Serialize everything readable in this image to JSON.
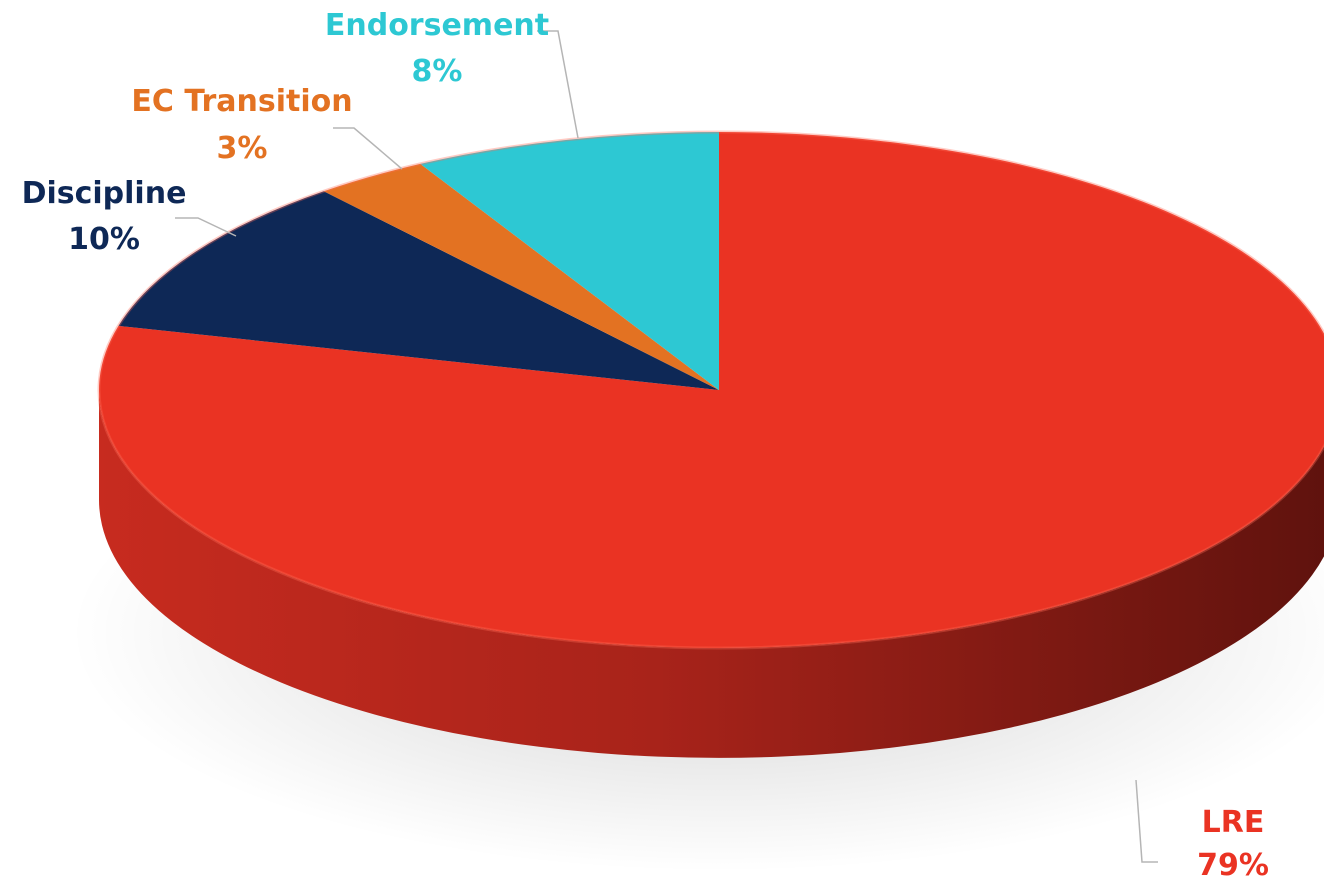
{
  "chart_data": {
    "type": "pie",
    "style": "3d",
    "slices": [
      {
        "label": "LRE",
        "value": 79,
        "display": "79%",
        "color": "#EA3323"
      },
      {
        "label": "Discipline",
        "value": 10,
        "display": "10%",
        "color": "#0E2856"
      },
      {
        "label": "EC Transition",
        "value": 3,
        "display": "3%",
        "color": "#E37222"
      },
      {
        "label": "Endorsement",
        "value": 8,
        "display": "8%",
        "color": "#2DC8D3"
      }
    ],
    "legend": "none"
  }
}
